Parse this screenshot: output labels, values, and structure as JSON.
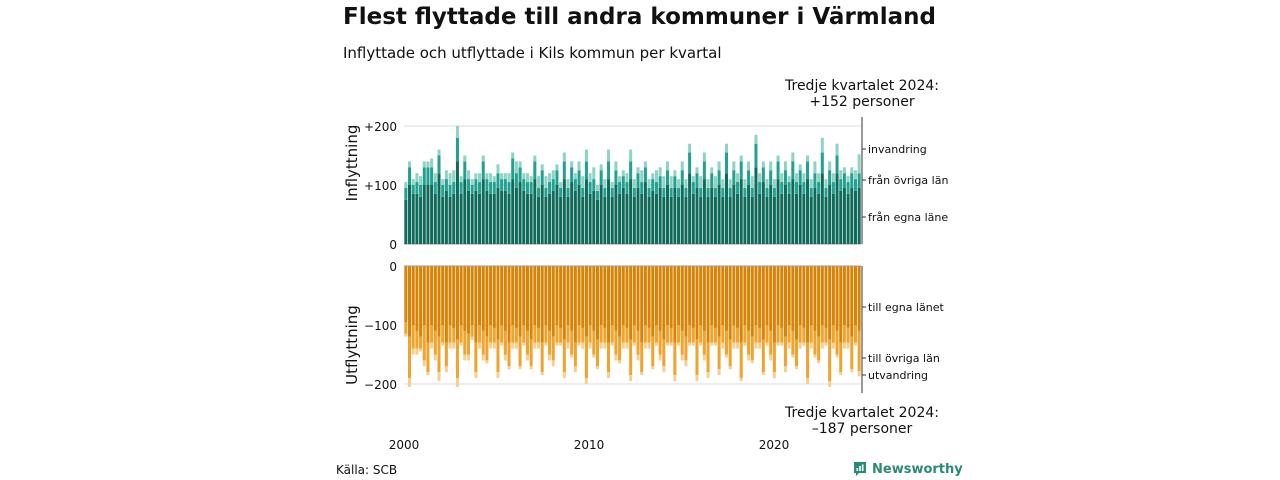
{
  "title": "Flest flyttade till andra kommuner i Värmland",
  "subtitle": "Inflyttade och utflyttade i Kils kommun per kvartal",
  "source": "Källa: SCB",
  "brand": "Newsworthy",
  "colors": {
    "in_own": "#0f6a5a",
    "in_other": "#22a090",
    "in_immig": "#8fd3c7",
    "out_own": "#d98306",
    "out_other": "#f2a32c",
    "out_emig": "#f9cf8f",
    "brand": "#2a8a78"
  },
  "chart_data": {
    "type": "bar",
    "stacked": true,
    "x_ticks": [
      "2000",
      "2010",
      "2020"
    ],
    "annotation_top": {
      "line1": "Tredje kvartalet 2024:",
      "line2": "+152 personer"
    },
    "annotation_bottom": {
      "line1": "Tredje kvartalet 2024:",
      "line2": "–187 personer"
    },
    "top": {
      "ylabel": "Inflyttning",
      "ylim": [
        0,
        210
      ],
      "yticks": [
        {
          "value": 0,
          "label": "0"
        },
        {
          "value": 100,
          "label": "+100"
        },
        {
          "value": 200,
          "label": "+200"
        }
      ],
      "series": [
        {
          "name": "från egna läne",
          "values": [
            75,
            100,
            85,
            85,
            80,
            100,
            100,
            100,
            85,
            120,
            80,
            90,
            80,
            85,
            140,
            85,
            110,
            90,
            85,
            90,
            85,
            110,
            90,
            85,
            85,
            95,
            90,
            90,
            85,
            110,
            95,
            105,
            90,
            85,
            85,
            110,
            80,
            100,
            80,
            85,
            90,
            100,
            80,
            110,
            80,
            105,
            90,
            100,
            80,
            110,
            85,
            90,
            75,
            100,
            80,
            110,
            80,
            100,
            85,
            95,
            85,
            110,
            80,
            95,
            85,
            105,
            80,
            90,
            85,
            95,
            80,
            100,
            80,
            95,
            80,
            100,
            80,
            120,
            85,
            95,
            80,
            110,
            80,
            95,
            80,
            100,
            80,
            120,
            80,
            100,
            85,
            110,
            80,
            100,
            80,
            130,
            85,
            105,
            80,
            100,
            80,
            110,
            85,
            100,
            85,
            110,
            85,
            100,
            85,
            110,
            80,
            95,
            85,
            120,
            80,
            100,
            85,
            120,
            90,
            95,
            85,
            95,
            90,
            95
          ]
        },
        {
          "name": "från övriga län",
          "values": [
            20,
            30,
            15,
            20,
            20,
            30,
            30,
            30,
            20,
            30,
            20,
            20,
            20,
            20,
            40,
            20,
            30,
            20,
            15,
            20,
            20,
            30,
            20,
            20,
            20,
            25,
            20,
            20,
            20,
            35,
            25,
            25,
            20,
            20,
            20,
            30,
            15,
            25,
            15,
            20,
            20,
            25,
            15,
            30,
            15,
            25,
            20,
            25,
            15,
            30,
            20,
            20,
            15,
            25,
            15,
            30,
            15,
            25,
            20,
            20,
            20,
            30,
            15,
            25,
            20,
            25,
            15,
            20,
            20,
            20,
            15,
            25,
            15,
            20,
            15,
            25,
            15,
            35,
            20,
            25,
            15,
            30,
            15,
            25,
            15,
            25,
            15,
            35,
            15,
            25,
            20,
            30,
            15,
            25,
            15,
            40,
            20,
            25,
            15,
            25,
            15,
            30,
            20,
            25,
            20,
            30,
            20,
            25,
            20,
            30,
            15,
            25,
            20,
            35,
            15,
            25,
            20,
            30,
            20,
            25,
            20,
            25,
            20,
            25
          ]
        },
        {
          "name": "invandring",
          "values": [
            10,
            10,
            10,
            15,
            15,
            10,
            10,
            15,
            15,
            10,
            10,
            15,
            20,
            20,
            20,
            10,
            10,
            15,
            10,
            10,
            15,
            10,
            10,
            15,
            10,
            15,
            10,
            10,
            15,
            10,
            20,
            10,
            10,
            15,
            10,
            10,
            20,
            10,
            20,
            15,
            15,
            10,
            10,
            15,
            15,
            10,
            10,
            15,
            20,
            20,
            15,
            20,
            10,
            10,
            15,
            20,
            10,
            15,
            10,
            10,
            15,
            20,
            15,
            10,
            20,
            10,
            15,
            10,
            20,
            15,
            20,
            15,
            20,
            10,
            15,
            15,
            15,
            15,
            10,
            10,
            20,
            15,
            15,
            10,
            20,
            15,
            15,
            15,
            15,
            15,
            15,
            10,
            15,
            15,
            20,
            15,
            15,
            10,
            15,
            15,
            15,
            10,
            15,
            15,
            10,
            15,
            15,
            10,
            15,
            10,
            15,
            20,
            15,
            25,
            15,
            15,
            15,
            20,
            15,
            10,
            10,
            10,
            15,
            32
          ]
        }
      ]
    },
    "bottom": {
      "ylabel": "Utflyttning",
      "ylim": [
        -215,
        0
      ],
      "yticks": [
        {
          "value": 0,
          "label": "0"
        },
        {
          "value": -100,
          "label": "−100"
        },
        {
          "value": -200,
          "label": "−200"
        }
      ],
      "series": [
        {
          "name": "till egna länet",
          "values": [
            -95,
            -120,
            -100,
            -110,
            -120,
            -100,
            -130,
            -100,
            -110,
            -120,
            -100,
            -130,
            -100,
            -105,
            -125,
            -100,
            -110,
            -115,
            -100,
            -130,
            -100,
            -110,
            -120,
            -100,
            -105,
            -125,
            -100,
            -110,
            -130,
            -100,
            -105,
            -120,
            -100,
            -110,
            -125,
            -100,
            -105,
            -130,
            -100,
            -110,
            -120,
            -100,
            -105,
            -125,
            -100,
            -110,
            -130,
            -100,
            -105,
            -120,
            -100,
            -110,
            -125,
            -100,
            -105,
            -130,
            -100,
            -110,
            -120,
            -100,
            -105,
            -125,
            -100,
            -110,
            -130,
            -100,
            -105,
            -120,
            -100,
            -110,
            -125,
            -100,
            -105,
            -130,
            -100,
            -110,
            -120,
            -100,
            -105,
            -125,
            -100,
            -110,
            -130,
            -100,
            -105,
            -120,
            -100,
            -110,
            -125,
            -100,
            -105,
            -130,
            -100,
            -110,
            -120,
            -100,
            -105,
            -125,
            -100,
            -110,
            -130,
            -100,
            -105,
            -120,
            -100,
            -110,
            -125,
            -100,
            -105,
            -130,
            -100,
            -110,
            -120,
            -100,
            -105,
            -125,
            -100,
            -110,
            -130,
            -100,
            -105,
            -120,
            -100,
            -110
          ]
        },
        {
          "name": "till övriga län",
          "values": [
            -20,
            -70,
            -40,
            -30,
            -20,
            -60,
            -50,
            -30,
            -40,
            -60,
            -30,
            -40,
            -30,
            -25,
            -65,
            -30,
            -40,
            -35,
            -20,
            -50,
            -30,
            -40,
            -40,
            -30,
            -25,
            -55,
            -30,
            -40,
            -40,
            -30,
            -25,
            -50,
            -30,
            -40,
            -45,
            -30,
            -25,
            -50,
            -30,
            -40,
            -40,
            -30,
            -25,
            -55,
            -30,
            -40,
            -40,
            -30,
            -25,
            -70,
            -30,
            -40,
            -45,
            -30,
            -25,
            -50,
            -30,
            -40,
            -40,
            -30,
            -25,
            -60,
            -30,
            -40,
            -50,
            -30,
            -25,
            -50,
            -30,
            -40,
            -45,
            -30,
            -25,
            -55,
            -30,
            -40,
            -40,
            -30,
            -25,
            -60,
            -30,
            -40,
            -50,
            -30,
            -25,
            -55,
            -30,
            -40,
            -45,
            -30,
            -25,
            -60,
            -30,
            -40,
            -40,
            -30,
            -25,
            -55,
            -30,
            -40,
            -50,
            -30,
            -25,
            -50,
            -30,
            -40,
            -45,
            -30,
            -25,
            -60,
            -30,
            -40,
            -40,
            -30,
            -25,
            -70,
            -30,
            -40,
            -50,
            -30,
            -25,
            -55,
            -30,
            -68
          ]
        },
        {
          "name": "utvandring",
          "values": [
            -5,
            -15,
            -10,
            -10,
            -5,
            -10,
            -5,
            -10,
            -10,
            -15,
            -5,
            -10,
            -10,
            -10,
            -15,
            -5,
            -10,
            -10,
            -5,
            -10,
            -10,
            -10,
            -5,
            -10,
            -10,
            -10,
            -5,
            -10,
            -5,
            -10,
            -10,
            -5,
            -5,
            -10,
            -5,
            -10,
            -10,
            -5,
            -5,
            -10,
            -10,
            -5,
            -5,
            -10,
            -10,
            -5,
            -10,
            -5,
            -10,
            -10,
            -10,
            -5,
            -5,
            -10,
            -10,
            -10,
            -5,
            -10,
            -5,
            -10,
            -10,
            -10,
            -5,
            -10,
            -5,
            -10,
            -10,
            -5,
            -5,
            -10,
            -10,
            -5,
            -5,
            -10,
            -5,
            -10,
            -10,
            -5,
            -5,
            -10,
            -5,
            -10,
            -10,
            -5,
            -5,
            -10,
            -10,
            -5,
            -5,
            -10,
            -10,
            -5,
            -5,
            -10,
            -5,
            -10,
            -10,
            -5,
            -5,
            -10,
            -10,
            -5,
            -5,
            -10,
            -10,
            -5,
            -5,
            -10,
            -5,
            -10,
            -10,
            -5,
            -5,
            -10,
            -5,
            -10,
            -10,
            -5,
            -5,
            -10,
            -10,
            -5,
            -5,
            -9
          ]
        }
      ]
    }
  }
}
